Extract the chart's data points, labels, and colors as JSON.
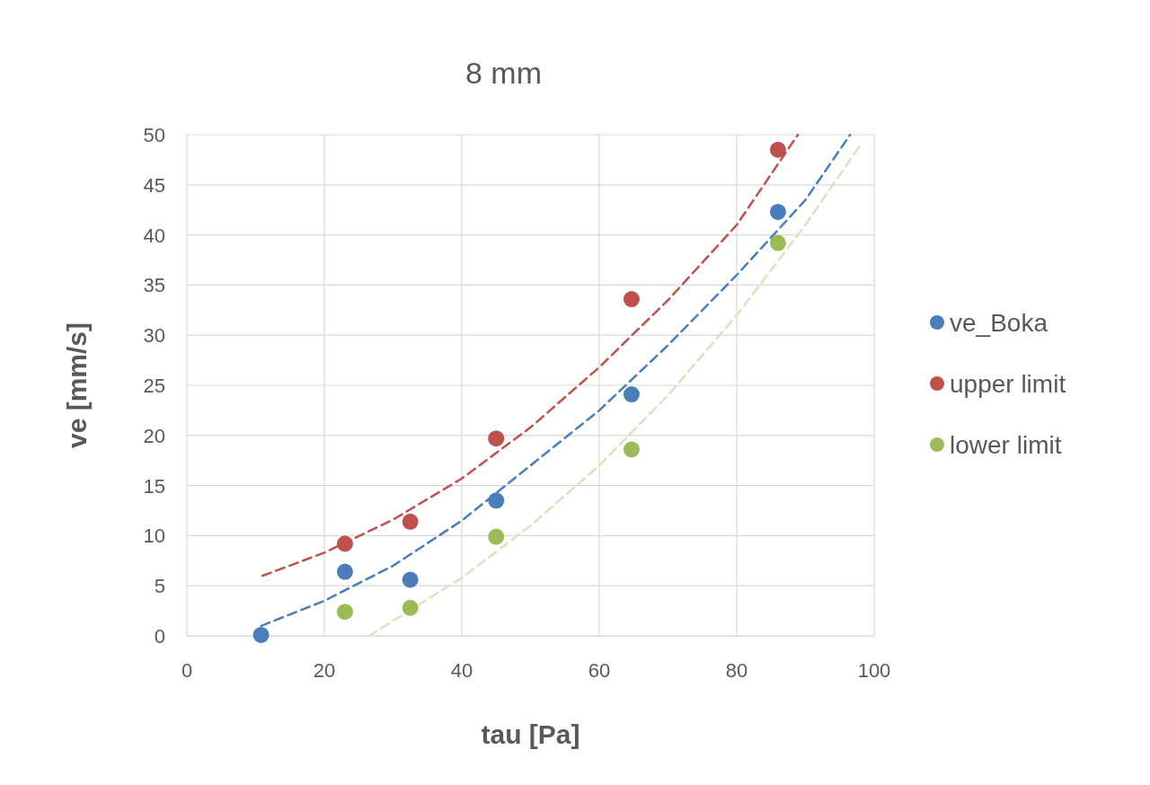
{
  "chart_data": {
    "type": "scatter",
    "title": "8 mm",
    "xlabel": "tau [Pa]",
    "ylabel": "ve [mm/s]",
    "xlim": [
      0,
      100
    ],
    "ylim": [
      0,
      50
    ],
    "xticks": [
      0,
      20,
      40,
      60,
      80,
      100
    ],
    "yticks": [
      0,
      5,
      10,
      15,
      20,
      25,
      30,
      35,
      40,
      45,
      50
    ],
    "grid": true,
    "legend": "right",
    "marker": "circle",
    "series": [
      {
        "name": "ve_Boka",
        "color": "#4a7ebb",
        "x": [
          10.8,
          23,
          32.5,
          45,
          64.7,
          86
        ],
        "values": [
          0.1,
          6.4,
          5.6,
          13.5,
          24.1,
          42.3
        ]
      },
      {
        "name": "upper limit",
        "color": "#c0504d",
        "x": [
          23,
          32.5,
          45,
          64.7,
          86
        ],
        "values": [
          9.2,
          11.4,
          19.7,
          33.6,
          48.5
        ]
      },
      {
        "name": "lower limit",
        "color": "#9bbb59",
        "x": [
          23,
          32.5,
          45,
          64.7,
          86
        ],
        "values": [
          2.4,
          2.8,
          9.9,
          18.6,
          39.2
        ]
      },
      {
        "type": "line",
        "line_style": "dashed",
        "marker": "none",
        "color": "#4a7ebb",
        "x": [
          10.8,
          20,
          30,
          40,
          50,
          60,
          70,
          80,
          90,
          96.5
        ],
        "values": [
          1,
          3.5,
          7,
          11.5,
          17,
          22.5,
          29,
          36,
          43.5,
          50
        ]
      },
      {
        "type": "line",
        "line_style": "dashed",
        "marker": "none",
        "color": "#c0504d",
        "x": [
          11,
          20,
          30,
          40,
          50,
          60,
          70,
          80,
          88.9
        ],
        "values": [
          6,
          8.3,
          11.6,
          15.7,
          20.8,
          26.8,
          33.5,
          41,
          50
        ]
      },
      {
        "type": "line",
        "line_style": "dashed",
        "marker": "none",
        "color": "#d7e4bd",
        "x": [
          26.5,
          30,
          40,
          50,
          60,
          70,
          80,
          90,
          98
        ],
        "values": [
          0,
          1.5,
          5.8,
          11,
          17,
          24,
          32,
          41,
          49
        ]
      }
    ]
  }
}
